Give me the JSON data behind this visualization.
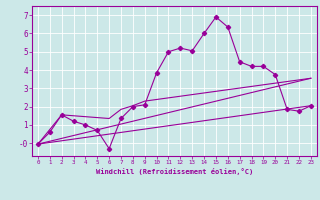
{
  "xlabel": "Windchill (Refroidissement éolien,°C)",
  "bg_color": "#cce8e8",
  "grid_color": "#ffffff",
  "line_color": "#990099",
  "xlim": [
    -0.5,
    23.5
  ],
  "ylim": [
    -0.7,
    7.5
  ],
  "xticks": [
    0,
    1,
    2,
    3,
    4,
    5,
    6,
    7,
    8,
    9,
    10,
    11,
    12,
    13,
    14,
    15,
    16,
    17,
    18,
    19,
    20,
    21,
    22,
    23
  ],
  "yticks": [
    0,
    1,
    2,
    3,
    4,
    5,
    6,
    7
  ],
  "ytick_labels": [
    "-0",
    "1",
    "2",
    "3",
    "4",
    "5",
    "6",
    "7"
  ],
  "line1_x": [
    0,
    1,
    2,
    3,
    4,
    5,
    6,
    7,
    8,
    9,
    10,
    11,
    12,
    13,
    14,
    15,
    16,
    17,
    18,
    19,
    20,
    21,
    22,
    23
  ],
  "line1_y": [
    -0.05,
    0.6,
    1.55,
    1.2,
    1.0,
    0.7,
    -0.3,
    1.35,
    2.0,
    2.1,
    3.85,
    5.0,
    5.2,
    5.05,
    6.0,
    6.9,
    6.35,
    4.45,
    4.2,
    4.2,
    3.75,
    1.85,
    1.75,
    2.05
  ],
  "line2_x": [
    0,
    23
  ],
  "line2_y": [
    -0.05,
    2.05
  ],
  "line3_x": [
    0,
    23
  ],
  "line3_y": [
    -0.05,
    3.55
  ],
  "line4_x": [
    0,
    2,
    6,
    7,
    8,
    9,
    23
  ],
  "line4_y": [
    -0.05,
    1.55,
    1.35,
    1.85,
    2.05,
    2.3,
    3.55
  ]
}
